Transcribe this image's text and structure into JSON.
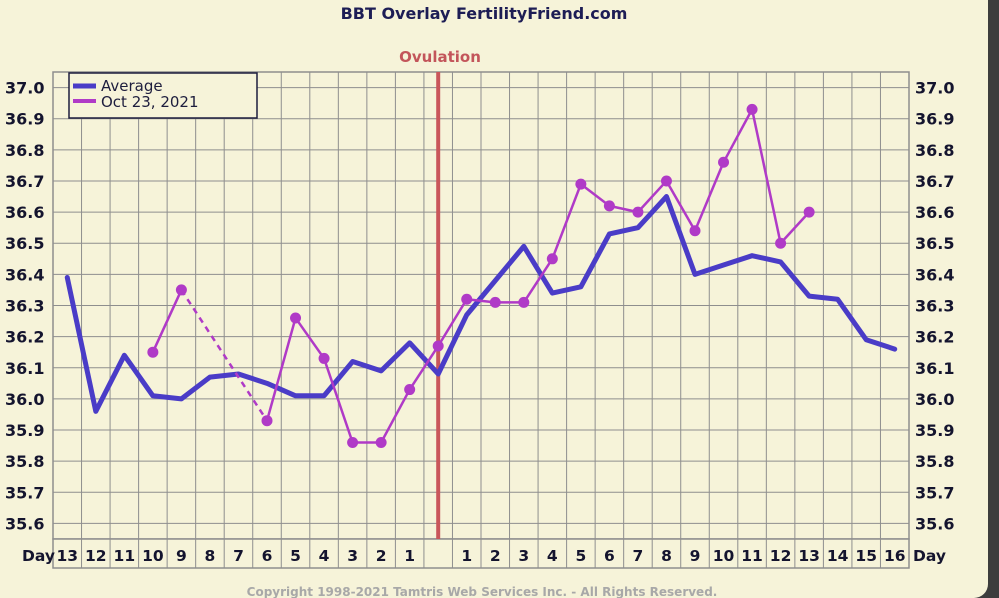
{
  "chart_data": {
    "type": "line",
    "title": "BBT Overlay FertilityFriend.com",
    "annotation": "Ovulation",
    "x_axis_label": "Day",
    "categories": [
      "13",
      "12",
      "11",
      "10",
      "9",
      "8",
      "7",
      "6",
      "5",
      "4",
      "3",
      "2",
      "1",
      "",
      "1",
      "2",
      "3",
      "4",
      "5",
      "6",
      "7",
      "8",
      "9",
      "10",
      "11",
      "12",
      "13",
      "14",
      "15",
      "16"
    ],
    "y_ticks": [
      "37.0",
      "36.9",
      "36.8",
      "36.7",
      "36.6",
      "36.5",
      "36.4",
      "36.3",
      "36.2",
      "36.1",
      "36.0",
      "35.9",
      "35.8",
      "35.7",
      "35.6"
    ],
    "ylim": [
      35.55,
      37.05
    ],
    "grid": true,
    "legend_position": "top-left",
    "series": [
      {
        "name": "Average",
        "color": "#4a3cc7",
        "values": [
          36.39,
          35.96,
          36.14,
          36.01,
          36.0,
          36.07,
          36.08,
          36.05,
          36.01,
          36.01,
          36.12,
          36.09,
          36.18,
          36.08,
          36.27,
          36.38,
          36.49,
          36.34,
          36.36,
          36.53,
          36.55,
          36.65,
          36.4,
          36.43,
          36.46,
          36.44,
          36.33,
          36.32,
          36.19,
          36.16
        ]
      },
      {
        "name": "Oct 23, 2021",
        "color": "#b03ac7",
        "values": [
          null,
          null,
          null,
          36.15,
          36.35,
          null,
          null,
          35.93,
          36.26,
          36.13,
          35.86,
          35.86,
          36.03,
          36.17,
          36.32,
          36.31,
          36.31,
          36.45,
          36.69,
          36.62,
          36.6,
          36.7,
          36.54,
          36.76,
          36.93,
          36.5,
          36.6,
          null,
          null,
          null
        ],
        "dashed_gap": [
          4,
          7
        ]
      }
    ]
  },
  "footer": {
    "copyright": "Copyright 1998-2021 Tamtris Web Services Inc. - All Rights Reserved."
  }
}
